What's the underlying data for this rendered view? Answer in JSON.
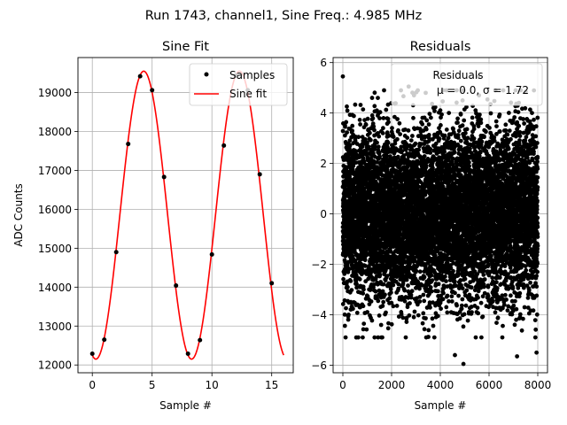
{
  "suptitle": "Run 1743, channel1, Sine Freq.: 4.985 MHz",
  "chart_data": [
    {
      "type": "scatter+line",
      "title": "Sine Fit",
      "xlabel": "Sample #",
      "ylabel": "ADC Counts",
      "xlim": [
        -1.2,
        16.8
      ],
      "ylim": [
        11800,
        19900
      ],
      "xticks": [
        0,
        5,
        10,
        15
      ],
      "yticks": [
        12000,
        13000,
        14000,
        15000,
        16000,
        17000,
        18000,
        19000
      ],
      "grid": true,
      "legend": {
        "position": "top-right",
        "entries": [
          "Samples",
          "Sine fit"
        ]
      },
      "series": [
        {
          "name": "Samples",
          "kind": "points",
          "color": "#000000",
          "x": [
            0,
            1,
            2,
            3,
            4,
            5,
            6,
            7,
            8,
            9,
            10,
            11,
            12,
            13,
            14,
            15
          ],
          "y": [
            12290,
            12650,
            14900,
            17680,
            19420,
            19060,
            16830,
            14040,
            12290,
            12640,
            14840,
            17640,
            19440,
            19060,
            16900,
            14100
          ]
        },
        {
          "name": "Sine fit",
          "kind": "line",
          "color": "#ff0000",
          "model": {
            "offset": 15850,
            "amplitude": 3700,
            "period_samples": 8.0,
            "phase_peak_x": 4.3,
            "x_range": [
              0,
              16
            ]
          }
        }
      ]
    },
    {
      "type": "scatter",
      "title": "Residuals",
      "xlabel": "Sample #",
      "ylabel": "",
      "xlim": [
        -400,
        8400
      ],
      "ylim": [
        -6.3,
        6.2
      ],
      "xticks": [
        0,
        2000,
        4000,
        6000,
        8000
      ],
      "yticks": [
        -6,
        -4,
        -2,
        0,
        2,
        4,
        6
      ],
      "grid": true,
      "legend": {
        "position": "top-right",
        "entries": [
          "Residuals",
          "μ = 0.0, σ = 1.72"
        ]
      },
      "series": [
        {
          "name": "Residuals",
          "kind": "points",
          "color": "#000000",
          "n_points": 8000,
          "mean": 0.0,
          "sigma": 1.72,
          "outliers": [
            [
              0,
              5.45
            ],
            [
              2700,
              5.05
            ],
            [
              5550,
              5.45
            ],
            [
              4950,
              -5.95
            ],
            [
              4600,
              -5.6
            ],
            [
              7150,
              -5.65
            ],
            [
              7950,
              -5.5
            ],
            [
              550,
              -4.9
            ],
            [
              3400,
              4.8
            ],
            [
              1200,
              4.6
            ]
          ]
        }
      ]
    }
  ]
}
